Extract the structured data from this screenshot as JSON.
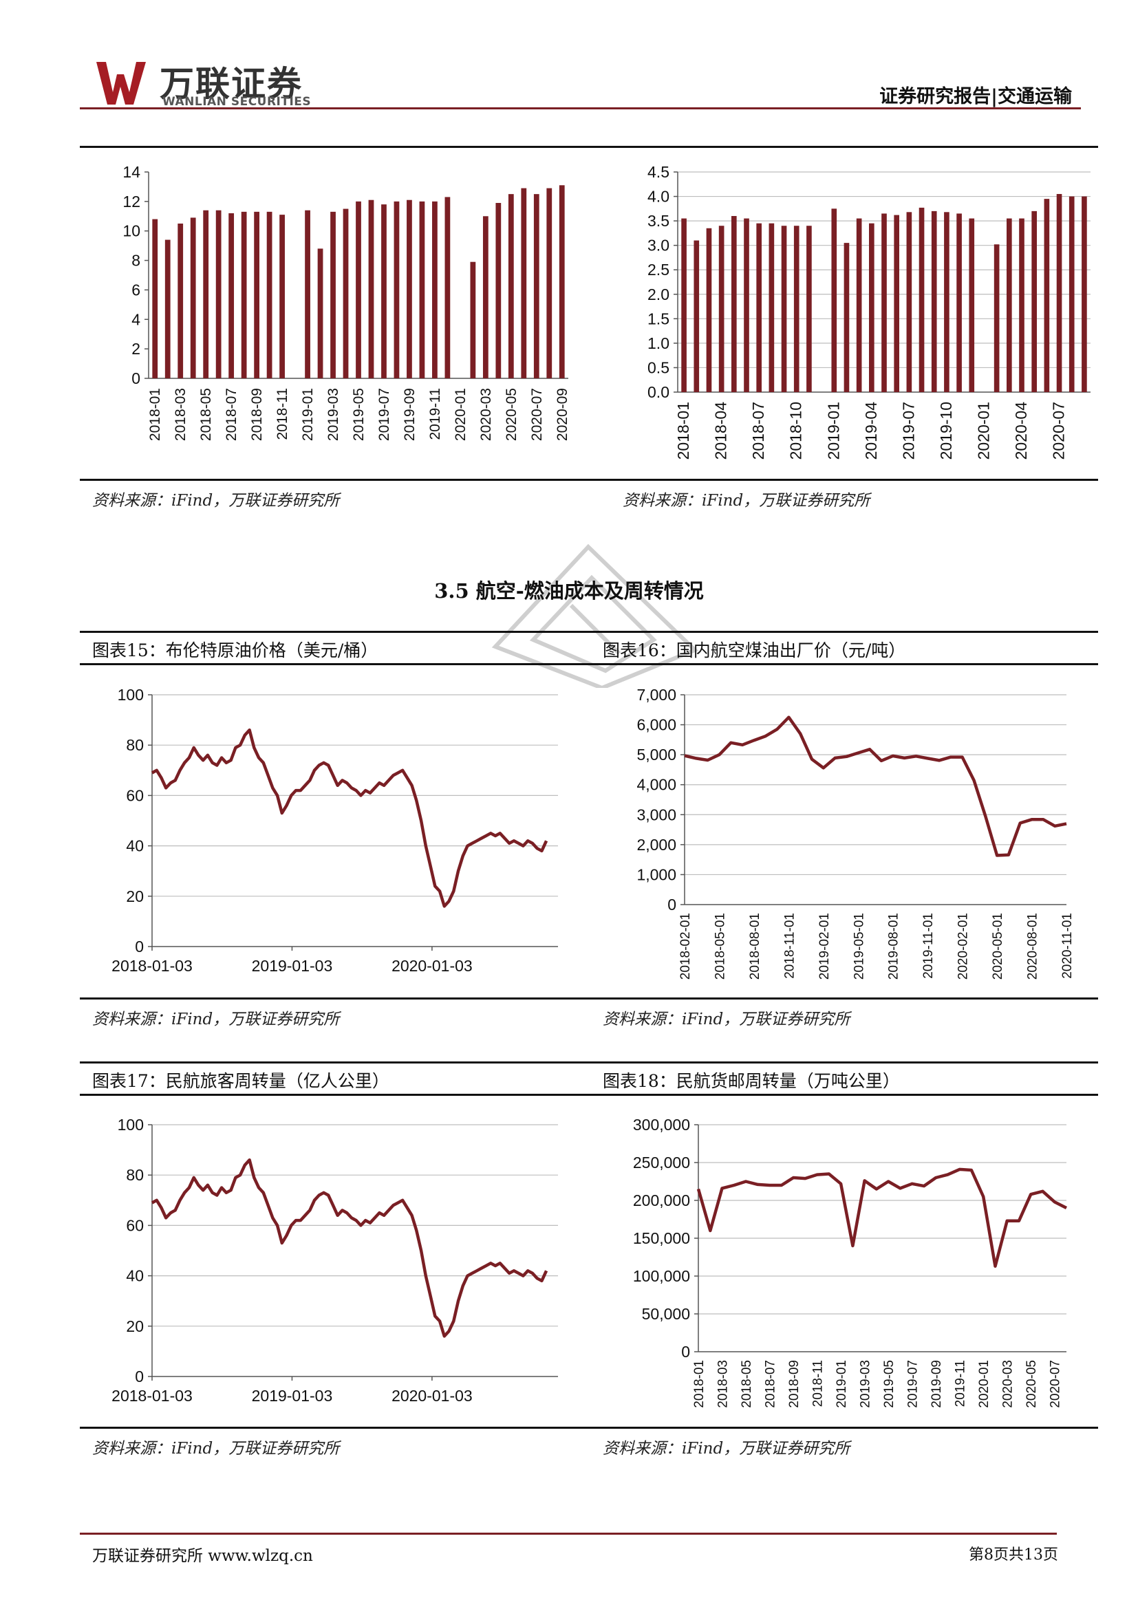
{
  "header": {
    "logo_cn": "万联证券",
    "logo_en": "WANLIAN SECURITIES",
    "report_title": "证券研究报告|交通运输"
  },
  "section_title": "3.5 航空-燃油成本及周转情况",
  "sources": {
    "s1": "资料来源：iFind，万联证券研究所",
    "s2": "资料来源：iFind，万联证券研究所",
    "s3": "资料来源：iFind，万联证券研究所",
    "s4": "资料来源：iFind，万联证券研究所",
    "s5": "资料来源：iFind，万联证券研究所",
    "s6": "资料来源：iFind，万联证券研究所"
  },
  "footer": {
    "left": "万联证券研究所 www.wlzq.cn",
    "right": "第8页共13页"
  },
  "chart_data": [
    {
      "id": "c1",
      "type": "bar",
      "title": "",
      "color": "#7a1f24",
      "ylim": [
        0,
        14
      ],
      "yticks": [
        "0",
        "2",
        "4",
        "6",
        "8",
        "10",
        "12",
        "14"
      ],
      "xtick_labels": [
        "2018-01",
        "2018-03",
        "2018-05",
        "2018-07",
        "2018-09",
        "2018-11",
        "2019-01",
        "2019-03",
        "2019-05",
        "2019-07",
        "2019-09",
        "2019-11",
        "2020-01",
        "2020-03",
        "2020-05",
        "2020-07",
        "2020-09"
      ],
      "values": [
        10.8,
        9.4,
        10.5,
        10.9,
        11.4,
        11.4,
        11.2,
        11.3,
        11.3,
        11.3,
        11.1,
        null,
        11.4,
        8.8,
        11.3,
        11.5,
        12.0,
        12.1,
        11.8,
        12.0,
        12.1,
        12.0,
        12.0,
        12.3,
        null,
        7.9,
        11.0,
        11.9,
        12.5,
        12.9,
        12.5,
        12.9,
        13.1
      ]
    },
    {
      "id": "c2",
      "type": "bar",
      "title": "",
      "color": "#7a1f24",
      "ylim": [
        0,
        4.5
      ],
      "yticks": [
        "0.0",
        "0.5",
        "1.0",
        "1.5",
        "2.0",
        "2.5",
        "3.0",
        "3.5",
        "4.0",
        "4.5"
      ],
      "xtick_labels": [
        "2018-01",
        "2018-04",
        "2018-07",
        "2018-10",
        "2019-01",
        "2019-04",
        "2019-07",
        "2019-10",
        "2020-01",
        "2020-04",
        "2020-07"
      ],
      "values": [
        3.55,
        3.1,
        3.35,
        3.4,
        3.6,
        3.55,
        3.45,
        3.45,
        3.4,
        3.4,
        3.4,
        null,
        3.75,
        3.05,
        3.55,
        3.45,
        3.65,
        3.62,
        3.68,
        3.77,
        3.7,
        3.68,
        3.65,
        3.55,
        null,
        3.02,
        3.55,
        3.55,
        3.7,
        3.95,
        4.05,
        4.0,
        4.0
      ]
    },
    {
      "id": "c3",
      "type": "line",
      "title": "图表15：布伦特原油价格（美元/桶）",
      "color": "#7a1f24",
      "ylim": [
        0,
        100
      ],
      "yticks": [
        "0",
        "20",
        "40",
        "60",
        "80",
        "100"
      ],
      "xtick_labels": [
        "2018-01-03",
        "2019-01-03",
        "2020-01-03"
      ],
      "x": [
        0,
        2,
        4,
        6,
        8,
        10,
        12,
        14,
        16,
        18,
        20,
        22,
        24,
        26,
        28,
        30,
        32,
        34,
        36,
        38,
        40,
        42,
        44,
        46,
        48,
        50,
        52,
        54,
        56,
        58,
        60,
        62,
        64,
        66,
        68,
        70,
        72,
        74,
        76,
        78,
        80,
        82,
        84,
        86,
        88,
        90,
        92,
        94,
        96,
        98,
        100,
        102,
        104,
        106,
        108,
        110,
        112,
        114,
        116,
        118,
        120,
        122,
        124,
        126,
        128,
        130,
        132,
        134,
        136,
        138,
        140,
        142,
        144,
        146,
        148,
        150,
        152,
        154,
        156,
        158,
        160,
        162,
        164,
        166,
        168,
        170
      ],
      "y": [
        69,
        70,
        67,
        63,
        65,
        66,
        70,
        73,
        75,
        79,
        76,
        74,
        76,
        73,
        72,
        75,
        73,
        74,
        79,
        80,
        84,
        86,
        79,
        75,
        73,
        68,
        63,
        60,
        53,
        56,
        60,
        62,
        62,
        64,
        66,
        70,
        72,
        73,
        72,
        68,
        64,
        66,
        65,
        63,
        62,
        60,
        62,
        61,
        63,
        65,
        64,
        66,
        68,
        69,
        70,
        67,
        64,
        58,
        50,
        40,
        32,
        24,
        22,
        16,
        18,
        22,
        30,
        36,
        40,
        41,
        42,
        43,
        44,
        45,
        44,
        45,
        43,
        41,
        42,
        41,
        40,
        42,
        41,
        39,
        38,
        42
      ]
    },
    {
      "id": "c4",
      "type": "line",
      "title": "图表16：国内航空煤油出厂价（元/吨）",
      "color": "#7a1f24",
      "ylim": [
        0,
        7000
      ],
      "yticks": [
        "0",
        "1,000",
        "2,000",
        "3,000",
        "4,000",
        "5,000",
        "6,000",
        "7,000"
      ],
      "xtick_labels": [
        "2018-02-01",
        "2018-05-01",
        "2018-08-01",
        "2018-11-01",
        "2019-02-01",
        "2019-05-01",
        "2019-08-01",
        "2019-11-01",
        "2020-02-01",
        "2020-05-01",
        "2020-08-01",
        "2020-11-01"
      ],
      "values": [
        4970,
        4880,
        4820,
        5000,
        5400,
        5330,
        5480,
        5620,
        5850,
        6250,
        5700,
        4850,
        4560,
        4890,
        4940,
        5060,
        5180,
        4800,
        4960,
        4890,
        4950,
        4880,
        4810,
        4920,
        4920,
        4150,
        2950,
        1640,
        1660,
        2720,
        2840,
        2840,
        2620,
        2700
      ]
    },
    {
      "id": "c5",
      "type": "line",
      "title": "图表17：民航旅客周转量（亿人公里）",
      "color": "#7a1f24",
      "ylim": [
        0,
        100
      ],
      "yticks": [
        "0",
        "20",
        "40",
        "60",
        "80",
        "100"
      ],
      "xtick_labels": [
        "2018-01-03",
        "2019-01-03",
        "2020-01-03"
      ],
      "x": [
        0,
        2,
        4,
        6,
        8,
        10,
        12,
        14,
        16,
        18,
        20,
        22,
        24,
        26,
        28,
        30,
        32,
        34,
        36,
        38,
        40,
        42,
        44,
        46,
        48,
        50,
        52,
        54,
        56,
        58,
        60,
        62,
        64,
        66,
        68,
        70,
        72,
        74,
        76,
        78,
        80,
        82,
        84,
        86,
        88,
        90,
        92,
        94,
        96,
        98,
        100,
        102,
        104,
        106,
        108,
        110,
        112,
        114,
        116,
        118,
        120,
        122,
        124,
        126,
        128,
        130,
        132,
        134,
        136,
        138,
        140,
        142,
        144,
        146,
        148,
        150,
        152,
        154,
        156,
        158,
        160,
        162,
        164,
        166,
        168,
        170
      ],
      "y": [
        69,
        70,
        67,
        63,
        65,
        66,
        70,
        73,
        75,
        79,
        76,
        74,
        76,
        73,
        72,
        75,
        73,
        74,
        79,
        80,
        84,
        86,
        79,
        75,
        73,
        68,
        63,
        60,
        53,
        56,
        60,
        62,
        62,
        64,
        66,
        70,
        72,
        73,
        72,
        68,
        64,
        66,
        65,
        63,
        62,
        60,
        62,
        61,
        63,
        65,
        64,
        66,
        68,
        69,
        70,
        67,
        64,
        58,
        50,
        40,
        32,
        24,
        22,
        16,
        18,
        22,
        30,
        36,
        40,
        41,
        42,
        43,
        44,
        45,
        44,
        45,
        43,
        41,
        42,
        41,
        40,
        42,
        41,
        39,
        38,
        42
      ]
    },
    {
      "id": "c6",
      "type": "line",
      "title": "图表18：民航货邮周转量（万吨公里）",
      "color": "#7a1f24",
      "ylim": [
        0,
        300000
      ],
      "yticks": [
        "0",
        "50,000",
        "100,000",
        "150,000",
        "200,000",
        "250,000",
        "300,000"
      ],
      "xtick_labels": [
        "2018-01",
        "2018-03",
        "2018-05",
        "2018-07",
        "2018-09",
        "2018-11",
        "2019-01",
        "2019-03",
        "2019-05",
        "2019-07",
        "2019-09",
        "2019-11",
        "2020-01",
        "2020-03",
        "2020-05",
        "2020-07"
      ],
      "values": [
        215000,
        160000,
        216000,
        220000,
        225000,
        221000,
        220000,
        220000,
        230000,
        229000,
        234000,
        235000,
        222000,
        140000,
        226000,
        215000,
        225000,
        216000,
        222000,
        219000,
        230000,
        234000,
        241000,
        240000,
        205000,
        113000,
        173000,
        173000,
        208000,
        212000,
        198000,
        190000
      ]
    }
  ]
}
